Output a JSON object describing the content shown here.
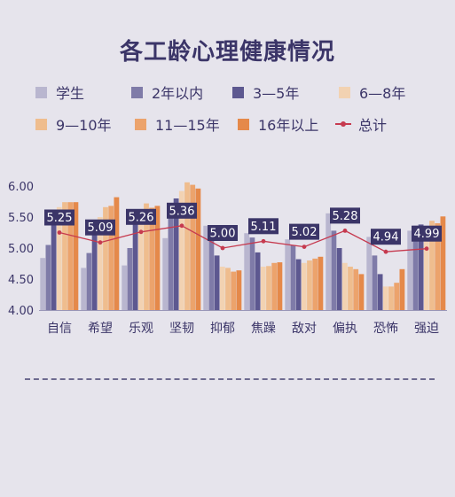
{
  "chart_data": {
    "type": "bar",
    "title": "各工龄心理健康情况",
    "categories": [
      "自信",
      "希望",
      "乐观",
      "坚韧",
      "抑郁",
      "焦躁",
      "敌对",
      "偏执",
      "恐怖",
      "强迫"
    ],
    "ylim": [
      4.0,
      6.0
    ],
    "yticks": [
      "4.00",
      "4.50",
      "5.00",
      "5.50",
      "6.00"
    ],
    "grid": false,
    "legend_position": "top",
    "series": [
      {
        "name": "学生",
        "color": "#b9b6cf",
        "values": [
          4.84,
          4.68,
          4.72,
          5.16,
          5.36,
          5.24,
          5.14,
          5.56,
          5.18,
          5.28
        ]
      },
      {
        "name": "2年以内",
        "color": "#7f7ba8",
        "values": [
          5.05,
          4.92,
          5.0,
          5.62,
          5.13,
          5.17,
          5.05,
          5.28,
          4.88,
          5.36
        ]
      },
      {
        "name": "3—5年",
        "color": "#5d5890",
        "values": [
          5.42,
          5.3,
          5.38,
          5.8,
          4.88,
          4.93,
          4.82,
          5.0,
          4.58,
          5.38
        ]
      },
      {
        "name": "6—8年",
        "color": "#f2d2b2",
        "values": [
          5.66,
          5.5,
          5.52,
          5.92,
          4.7,
          4.7,
          4.76,
          4.76,
          4.38,
          5.26
        ]
      },
      {
        "name": "9—10年",
        "color": "#efbd8e",
        "values": [
          5.74,
          5.66,
          5.72,
          6.06,
          4.68,
          4.71,
          4.8,
          4.7,
          4.38,
          5.44
        ]
      },
      {
        "name": "11—15年",
        "color": "#eca36c",
        "values": [
          5.74,
          5.68,
          5.65,
          6.02,
          4.62,
          4.76,
          4.83,
          4.66,
          4.44,
          5.4
        ]
      },
      {
        "name": "16年以上",
        "color": "#e5894a",
        "values": [
          5.74,
          5.82,
          5.68,
          5.96,
          4.64,
          4.77,
          4.86,
          4.58,
          4.66,
          5.51
        ]
      }
    ],
    "line": {
      "name": "总计",
      "color": "#c63a4f",
      "values": [
        5.25,
        5.09,
        5.26,
        5.36,
        5.0,
        5.11,
        5.02,
        5.28,
        4.94,
        4.99
      ]
    }
  }
}
